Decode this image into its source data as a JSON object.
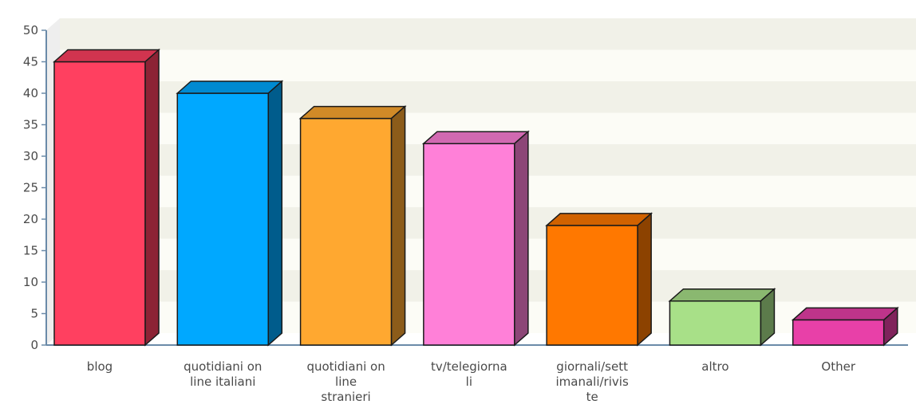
{
  "chart_data": {
    "type": "bar",
    "categories": [
      "blog",
      "quotidiani on line italiani",
      "quotidiani on line stranieri",
      "tv/telegiornali",
      "giornali/settimanali/riviste",
      "altro",
      "Other"
    ],
    "category_lines": [
      [
        "blog"
      ],
      [
        "quotidiani on",
        "line italiani"
      ],
      [
        "quotidiani on",
        "line",
        "stranieri"
      ],
      [
        "tv/telegiorna",
        "li"
      ],
      [
        "giornali/sett",
        "imanali/rivis",
        "te"
      ],
      [
        "altro"
      ],
      [
        "Other"
      ]
    ],
    "values": [
      45,
      40,
      36,
      32,
      19,
      7,
      4
    ],
    "colors": [
      "#ff4060",
      "#00a8ff",
      "#ffa830",
      "#ff80d8",
      "#ff7800",
      "#a8e088",
      "#e840a8"
    ],
    "ylim": [
      0,
      50
    ],
    "yticks": [
      "0",
      "5",
      "10",
      "15",
      "20",
      "25",
      "30",
      "35",
      "40",
      "45",
      "50"
    ],
    "grid": true,
    "grid_colors": [
      "#f1f1e8",
      "#fcfcf6"
    ],
    "title": "",
    "xlabel": "",
    "ylabel": ""
  }
}
